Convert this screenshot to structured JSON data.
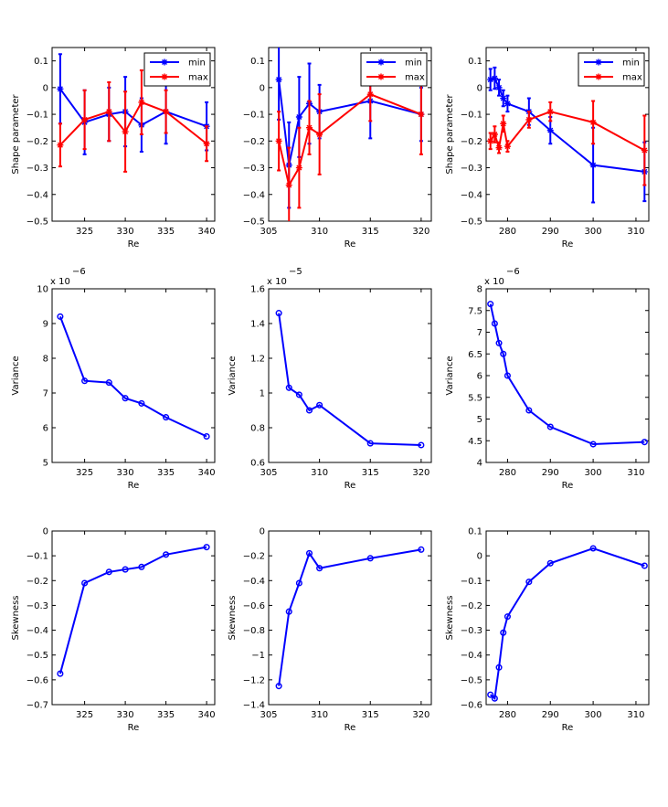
{
  "chart_data": [
    {
      "type": "line",
      "panel": "row1-col1",
      "title": "",
      "xlabel": "Re",
      "ylabel": "Shape parameter",
      "xlim": [
        321,
        341
      ],
      "ylim": [
        -0.5,
        0.15
      ],
      "xticks": [
        325,
        330,
        335,
        340
      ],
      "xtick_labels": [
        "325",
        "330",
        "335",
        "340"
      ],
      "yticks": [
        0.1,
        0,
        -0.1,
        -0.2,
        -0.3,
        -0.4,
        -0.5
      ],
      "ytick_labels": [
        "0.1",
        "0",
        "−0.1",
        "−0.2",
        "−0.3",
        "−0.4",
        "−0.5"
      ],
      "legend": {
        "position": "top-right",
        "entries": [
          "min",
          "max"
        ]
      },
      "series": [
        {
          "name": "min",
          "color": "#0000ff",
          "marker": "star",
          "x": [
            322,
            325,
            328,
            330,
            332,
            335,
            340
          ],
          "y": [
            -0.005,
            -0.13,
            -0.1,
            -0.09,
            -0.14,
            -0.09,
            -0.145
          ],
          "err": [
            0.13,
            0.12,
            0.1,
            0.13,
            0.1,
            0.12,
            0.09
          ]
        },
        {
          "name": "max",
          "color": "#ff0000",
          "marker": "star",
          "x": [
            322,
            325,
            328,
            330,
            332,
            335,
            340
          ],
          "y": [
            -0.215,
            -0.12,
            -0.09,
            -0.165,
            -0.055,
            -0.09,
            -0.21
          ],
          "err": [
            0.08,
            0.11,
            0.11,
            0.15,
            0.12,
            0.08,
            0.065
          ]
        }
      ]
    },
    {
      "type": "line",
      "panel": "row1-col2",
      "title": "",
      "xlabel": "Re",
      "ylabel": "",
      "xlim": [
        305,
        321
      ],
      "ylim": [
        -0.5,
        0.15
      ],
      "xticks": [
        305,
        310,
        315,
        320
      ],
      "xtick_labels": [
        "305",
        "310",
        "315",
        "320"
      ],
      "yticks": [
        0.1,
        0,
        -0.1,
        -0.2,
        -0.3,
        -0.4,
        -0.5
      ],
      "ytick_labels": [
        "0.1",
        "0",
        "−0.1",
        "−0.2",
        "−0.3",
        "−0.4",
        "−0.5"
      ],
      "legend": {
        "position": "top-right",
        "entries": [
          "min",
          "max"
        ]
      },
      "series": [
        {
          "name": "min",
          "color": "#0000ff",
          "marker": "star",
          "x": [
            306,
            307,
            308,
            309,
            310,
            315,
            320
          ],
          "y": [
            0.03,
            -0.29,
            -0.11,
            -0.06,
            -0.09,
            -0.05,
            -0.1
          ],
          "err": [
            0.15,
            0.16,
            0.15,
            0.15,
            0.1,
            0.14,
            0.1
          ]
        },
        {
          "name": "max",
          "color": "#ff0000",
          "marker": "star",
          "x": [
            306,
            307,
            308,
            309,
            310,
            315,
            320
          ],
          "y": [
            -0.2,
            -0.365,
            -0.3,
            -0.15,
            -0.175,
            -0.025,
            -0.1
          ],
          "err": [
            0.11,
            0.14,
            0.15,
            0.1,
            0.15,
            0.1,
            0.15
          ]
        }
      ]
    },
    {
      "type": "line",
      "panel": "row1-col3",
      "title": "",
      "xlabel": "Re",
      "ylabel": "Shape parameter",
      "xlim": [
        275,
        313
      ],
      "ylim": [
        -0.5,
        0.15
      ],
      "xticks": [
        280,
        290,
        300,
        310
      ],
      "xtick_labels": [
        "280",
        "290",
        "300",
        "310"
      ],
      "yticks": [
        0.1,
        0,
        -0.1,
        -0.2,
        -0.3,
        -0.4,
        -0.5
      ],
      "ytick_labels": [
        "0.1",
        "0",
        "−0.1",
        "−0.2",
        "−0.3",
        "−0.4",
        "−0.5"
      ],
      "legend": {
        "position": "top-right",
        "entries": [
          "min",
          "max"
        ]
      },
      "series": [
        {
          "name": "min",
          "color": "#0000ff",
          "marker": "star",
          "x": [
            276,
            277,
            278,
            279,
            280,
            285,
            290,
            300,
            312
          ],
          "y": [
            0.03,
            0.035,
            0.0,
            -0.04,
            -0.06,
            -0.09,
            -0.16,
            -0.29,
            -0.315
          ],
          "err": [
            0.04,
            0.04,
            0.03,
            0.03,
            0.03,
            0.05,
            0.05,
            0.14,
            0.11
          ]
        },
        {
          "name": "max",
          "color": "#ff0000",
          "marker": "star",
          "x": [
            276,
            277,
            278,
            279,
            280,
            285,
            290,
            300,
            312
          ],
          "y": [
            -0.2,
            -0.175,
            -0.225,
            -0.135,
            -0.22,
            -0.12,
            -0.09,
            -0.13,
            -0.235
          ],
          "err": [
            0.03,
            0.03,
            0.02,
            0.03,
            0.02,
            0.03,
            0.035,
            0.08,
            0.13
          ]
        }
      ]
    },
    {
      "type": "line",
      "panel": "row2-col1",
      "title": "",
      "xlabel": "Re",
      "ylabel": "Variance",
      "exponent_label": "x 10",
      "exponent_power": "−6",
      "xlim": [
        321,
        341
      ],
      "ylim": [
        5,
        10
      ],
      "xticks": [
        325,
        330,
        335,
        340
      ],
      "xtick_labels": [
        "325",
        "330",
        "335",
        "340"
      ],
      "yticks": [
        10,
        9,
        8,
        7,
        6,
        5
      ],
      "ytick_labels": [
        "10",
        "9",
        "8",
        "7",
        "6",
        "5"
      ],
      "series": [
        {
          "name": "variance",
          "color": "#0000ff",
          "marker": "circle",
          "x": [
            322,
            325,
            328,
            330,
            332,
            335,
            340
          ],
          "y": [
            9.2,
            7.35,
            7.3,
            6.85,
            6.7,
            6.3,
            5.75
          ]
        }
      ]
    },
    {
      "type": "line",
      "panel": "row2-col2",
      "title": "",
      "xlabel": "Re",
      "ylabel": "Variance",
      "exponent_label": "x 10",
      "exponent_power": "−5",
      "xlim": [
        305,
        321
      ],
      "ylim": [
        0.6,
        1.6
      ],
      "xticks": [
        305,
        310,
        315,
        320
      ],
      "xtick_labels": [
        "305",
        "310",
        "315",
        "320"
      ],
      "yticks": [
        1.6,
        1.4,
        1.2,
        1,
        0.8,
        0.6
      ],
      "ytick_labels": [
        "1.6",
        "1.4",
        "1.2",
        "1",
        "0.8",
        "0.6"
      ],
      "series": [
        {
          "name": "variance",
          "color": "#0000ff",
          "marker": "circle",
          "x": [
            306,
            307,
            308,
            309,
            310,
            315,
            320
          ],
          "y": [
            1.46,
            1.03,
            0.99,
            0.9,
            0.93,
            0.71,
            0.7
          ]
        }
      ]
    },
    {
      "type": "line",
      "panel": "row2-col3",
      "title": "",
      "xlabel": "Re",
      "ylabel": "Variance",
      "exponent_label": "x 10",
      "exponent_power": "−6",
      "xlim": [
        275,
        313
      ],
      "ylim": [
        4,
        8
      ],
      "xticks": [
        280,
        290,
        300,
        310
      ],
      "xtick_labels": [
        "280",
        "290",
        "300",
        "310"
      ],
      "yticks": [
        8,
        7.5,
        7,
        6.5,
        6,
        5.5,
        5,
        4.5,
        4
      ],
      "ytick_labels": [
        "8",
        "7.5",
        "7",
        "6.5",
        "6",
        "5.5",
        "5",
        "4.5",
        "4"
      ],
      "series": [
        {
          "name": "variance",
          "color": "#0000ff",
          "marker": "circle",
          "x": [
            276,
            277,
            278,
            279,
            280,
            285,
            290,
            300,
            312
          ],
          "y": [
            7.65,
            7.2,
            6.75,
            6.5,
            6.0,
            5.2,
            4.82,
            4.42,
            4.47
          ]
        }
      ]
    },
    {
      "type": "line",
      "panel": "row3-col1",
      "title": "",
      "xlabel": "Re",
      "ylabel": "Skewness",
      "xlim": [
        321,
        341
      ],
      "ylim": [
        -0.7,
        0
      ],
      "xticks": [
        325,
        330,
        335,
        340
      ],
      "xtick_labels": [
        "325",
        "330",
        "335",
        "340"
      ],
      "yticks": [
        0,
        -0.1,
        -0.2,
        -0.3,
        -0.4,
        -0.5,
        -0.6,
        -0.7
      ],
      "ytick_labels": [
        "0",
        "−0.1",
        "−0.2",
        "−0.3",
        "−0.4",
        "−0.5",
        "−0.6",
        "−0.7"
      ],
      "series": [
        {
          "name": "skewness",
          "color": "#0000ff",
          "marker": "circle",
          "x": [
            322,
            325,
            328,
            330,
            332,
            335,
            340
          ],
          "y": [
            -0.575,
            -0.21,
            -0.165,
            -0.155,
            -0.145,
            -0.095,
            -0.065
          ]
        }
      ]
    },
    {
      "type": "line",
      "panel": "row3-col2",
      "title": "",
      "xlabel": "Re",
      "ylabel": "Skewness",
      "xlim": [
        305,
        321
      ],
      "ylim": [
        -1.4,
        0
      ],
      "xticks": [
        305,
        310,
        315,
        320
      ],
      "xtick_labels": [
        "305",
        "310",
        "315",
        "320"
      ],
      "yticks": [
        0,
        -0.2,
        -0.4,
        -0.6,
        -0.8,
        -1,
        -1.2,
        -1.4
      ],
      "ytick_labels": [
        "0",
        "−0.2",
        "−0.4",
        "−0.6",
        "−0.8",
        "−1",
        "−1.2",
        "−1.4"
      ],
      "series": [
        {
          "name": "skewness",
          "color": "#0000ff",
          "marker": "circle",
          "x": [
            306,
            307,
            308,
            309,
            310,
            315,
            320
          ],
          "y": [
            -1.25,
            -0.65,
            -0.42,
            -0.18,
            -0.3,
            -0.22,
            -0.15
          ]
        }
      ]
    },
    {
      "type": "line",
      "panel": "row3-col3",
      "title": "",
      "xlabel": "Re",
      "ylabel": "Skewness",
      "xlim": [
        275,
        313
      ],
      "ylim": [
        -0.6,
        0.1
      ],
      "xticks": [
        280,
        290,
        300,
        310
      ],
      "xtick_labels": [
        "280",
        "290",
        "300",
        "310"
      ],
      "yticks": [
        0.1,
        0,
        -0.1,
        -0.2,
        -0.3,
        -0.4,
        -0.5,
        -0.6
      ],
      "ytick_labels": [
        "0.1",
        "0",
        "−0.1",
        "−0.2",
        "−0.3",
        "−0.4",
        "−0.5",
        "−0.6"
      ],
      "series": [
        {
          "name": "skewness",
          "color": "#0000ff",
          "marker": "circle",
          "x": [
            276,
            277,
            278,
            279,
            280,
            285,
            290,
            300,
            312
          ],
          "y": [
            -0.56,
            -0.575,
            -0.45,
            -0.31,
            -0.245,
            -0.105,
            -0.03,
            0.03,
            -0.04
          ]
        }
      ]
    }
  ]
}
